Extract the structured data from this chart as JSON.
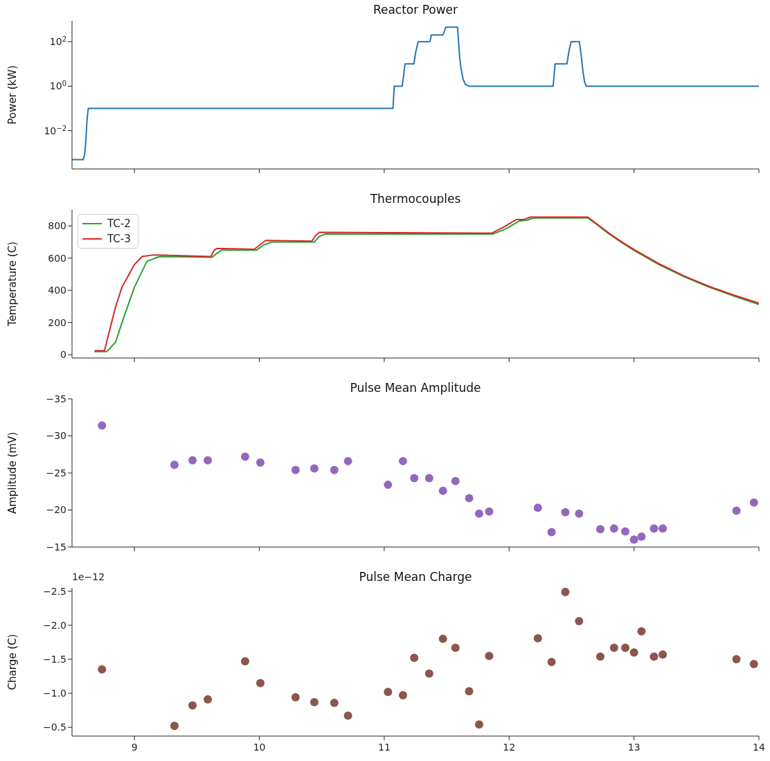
{
  "chart_data": [
    {
      "type": "line",
      "title": "Reactor Power",
      "ylabel": "Power (kW)",
      "log": "y",
      "xlim": [
        8.5,
        14
      ],
      "xticks": [
        9,
        10,
        11,
        12,
        13,
        14
      ],
      "ylim": [
        0.00019,
        870
      ],
      "yticks": [
        {
          "value": 0.01,
          "label": "10$^{−2}$"
        },
        {
          "value": 1,
          "label": "10$^{0}$"
        },
        {
          "value": 100,
          "label": "10$^{2}$"
        }
      ],
      "tick_labels": "y",
      "series": [
        {
          "color": "#1f77b4",
          "x": [
            8.5,
            8.59,
            8.6,
            8.61,
            8.62,
            8.63,
            11.07,
            11.08,
            11.144,
            11.155,
            11.166,
            11.238,
            11.25,
            11.271,
            11.366,
            11.372,
            11.377,
            11.471,
            11.482,
            11.493,
            11.587,
            11.595,
            11.604,
            11.615,
            11.632,
            11.65,
            11.676,
            12.352,
            12.36,
            12.368,
            12.463,
            12.48,
            12.496,
            12.562,
            12.575,
            12.59,
            12.605,
            12.618,
            14
          ],
          "values": [
            0.0005,
            0.0005,
            0.0008,
            0.003,
            0.03,
            0.1,
            0.1,
            1,
            1,
            3,
            10,
            10,
            30,
            100,
            100,
            150,
            200,
            200,
            300,
            450,
            450,
            100,
            20,
            6,
            2,
            1.2,
            1,
            1,
            3,
            10,
            10,
            40,
            100,
            100,
            30,
            5,
            1.5,
            1,
            1
          ]
        }
      ]
    },
    {
      "type": "line",
      "title": "Thermocouples",
      "ylabel": "Temperature (C)",
      "xlim": [
        8.5,
        14
      ],
      "xticks": [
        9,
        10,
        11,
        12,
        13,
        14
      ],
      "ylim": [
        -20,
        900
      ],
      "yticks": [
        0,
        200,
        400,
        600,
        800
      ],
      "tick_labels": "y",
      "legend": "top left",
      "series": [
        {
          "name": "TC-2",
          "color": "#2ca02c",
          "x": [
            8.68,
            8.78,
            8.85,
            8.9,
            9.0,
            9.1,
            9.2,
            9.62,
            9.66,
            9.7,
            9.98,
            10.03,
            10.1,
            10.44,
            10.48,
            10.53,
            11.87,
            11.97,
            12.08,
            12.14,
            12.2,
            12.63,
            12.7,
            12.8,
            12.9,
            13.0,
            13.2,
            13.4,
            13.6,
            13.8,
            14.0
          ],
          "values": [
            20,
            20,
            80,
            200,
            420,
            580,
            610,
            605,
            630,
            650,
            650,
            680,
            700,
            700,
            735,
            750,
            750,
            780,
            830,
            835,
            850,
            850,
            810,
            750,
            697,
            648,
            560,
            485,
            420,
            365,
            312
          ]
        },
        {
          "name": "TC-3",
          "color": "#d62728",
          "x": [
            8.68,
            8.76,
            8.8,
            8.85,
            8.9,
            9.0,
            9.06,
            9.15,
            9.61,
            9.64,
            9.66,
            9.96,
            10.0,
            10.05,
            10.42,
            10.45,
            10.48,
            11.86,
            11.95,
            12.06,
            12.12,
            12.17,
            12.63,
            12.7,
            12.8,
            12.9,
            13.0,
            13.2,
            13.4,
            13.6,
            13.8,
            14.0
          ],
          "values": [
            25,
            25,
            150,
            300,
            420,
            560,
            610,
            620,
            610,
            650,
            660,
            655,
            680,
            710,
            705,
            740,
            760,
            755,
            790,
            840,
            840,
            855,
            855,
            814,
            755,
            702,
            653,
            565,
            490,
            425,
            370,
            320
          ]
        }
      ]
    },
    {
      "type": "scatter",
      "title": "Pulse Mean Amplitude",
      "ylabel": "Amplitude (mV)",
      "xlim": [
        8.5,
        14
      ],
      "xticks": [
        9,
        10,
        11,
        12,
        13,
        14
      ],
      "ylim": [
        -15,
        -35
      ],
      "yticks": [
        {
          "value": -35,
          "label": "−35"
        },
        {
          "value": -30,
          "label": "−30"
        },
        {
          "value": -25,
          "label": "−25"
        },
        {
          "value": -20,
          "label": "−20"
        },
        {
          "value": -15,
          "label": "−15"
        }
      ],
      "tick_labels": "y",
      "marker": "circle",
      "color": "#9467bd",
      "x": [
        8.74,
        9.32,
        9.465,
        9.587,
        9.886,
        10.008,
        10.29,
        10.44,
        10.6,
        10.71,
        11.03,
        11.15,
        11.24,
        11.36,
        11.47,
        11.57,
        11.68,
        11.76,
        11.84,
        12.23,
        12.34,
        12.45,
        12.56,
        12.73,
        12.84,
        12.93,
        13.0,
        13.06,
        13.16,
        13.23,
        13.82,
        13.96
      ],
      "values": [
        -31.4,
        -26.1,
        -26.7,
        -26.7,
        -27.2,
        -26.4,
        -25.4,
        -25.6,
        -25.4,
        -26.6,
        -23.4,
        -26.6,
        -24.3,
        -24.3,
        -22.6,
        -23.9,
        -21.6,
        -19.5,
        -19.8,
        -20.3,
        -17.0,
        -19.7,
        -19.5,
        -17.4,
        -17.5,
        -17.1,
        -16.0,
        -16.4,
        -17.5,
        -17.5,
        -19.9,
        -21.0
      ]
    },
    {
      "type": "scatter",
      "title": "Pulse Mean Charge",
      "ylabel": "Charge (C)",
      "annotations": [
        "1e−12"
      ],
      "xlim": [
        8.5,
        14
      ],
      "xticks": [
        9,
        10,
        11,
        12,
        13,
        14
      ],
      "ylim": [
        -0.37,
        -2.55
      ],
      "yticks": [
        {
          "value": -2.5,
          "label": "−2.5"
        },
        {
          "value": -2.0,
          "label": "−2.0"
        },
        {
          "value": -1.5,
          "label": "−1.5"
        },
        {
          "value": -1.0,
          "label": "−1.0"
        },
        {
          "value": -0.5,
          "label": "−0.5"
        }
      ],
      "marker": "circle",
      "color": "#8c564b",
      "x": [
        8.74,
        9.32,
        9.465,
        9.587,
        9.886,
        10.008,
        10.29,
        10.44,
        10.6,
        10.71,
        11.03,
        11.15,
        11.24,
        11.36,
        11.47,
        11.57,
        11.68,
        11.76,
        11.84,
        12.23,
        12.34,
        12.45,
        12.56,
        12.73,
        12.84,
        12.93,
        13.0,
        13.06,
        13.16,
        13.23,
        13.82,
        13.96
      ],
      "values": [
        -1.35,
        -0.52,
        -0.82,
        -0.91,
        -1.47,
        -1.15,
        -0.94,
        -0.87,
        -0.86,
        -0.67,
        -1.02,
        -0.97,
        -1.52,
        -1.29,
        -1.8,
        -1.67,
        -1.03,
        -0.54,
        -1.55,
        -1.81,
        -1.46,
        -2.49,
        -2.06,
        -1.54,
        -1.67,
        -1.67,
        -1.6,
        -1.91,
        -1.54,
        -1.57,
        -1.5,
        -1.43
      ]
    }
  ]
}
